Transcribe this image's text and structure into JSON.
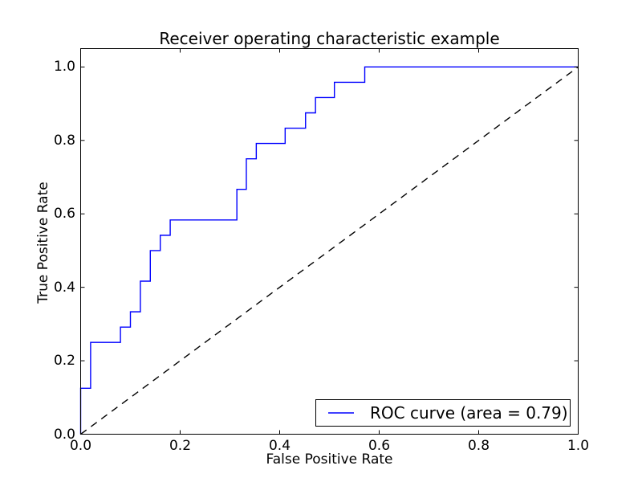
{
  "title": "Receiver operating characteristic example",
  "axes": {
    "xlabel": "False Positive Rate",
    "ylabel": "True Positive Rate"
  },
  "legend": {
    "label": "ROC curve (area = 0.79)",
    "series_color": "#0000ff",
    "position": "lower right"
  },
  "colors": {
    "roc_curve": "#0000ff",
    "chance_line": "#000000",
    "frame": "#000000",
    "background": "#ffffff"
  },
  "chart_data": {
    "type": "line",
    "title": "Receiver operating characteristic example",
    "xlabel": "False Positive Rate",
    "ylabel": "True Positive Rate",
    "xlim": [
      0.0,
      1.0
    ],
    "ylim": [
      0.0,
      1.05
    ],
    "grid": false,
    "legend_position": "lower right",
    "x_ticks": [
      0.0,
      0.2,
      0.4,
      0.6,
      0.8,
      1.0
    ],
    "y_ticks": [
      0.0,
      0.2,
      0.4,
      0.6,
      0.8,
      1.0
    ],
    "x_tick_labels": [
      "0.0",
      "0.2",
      "0.4",
      "0.6",
      "0.8",
      "1.0"
    ],
    "y_tick_labels": [
      "0.0",
      "0.2",
      "0.4",
      "0.6",
      "0.8",
      "1.0"
    ],
    "auc": 0.79,
    "series": [
      {
        "name": "ROC curve (area = 0.79)",
        "color": "#0000ff",
        "linestyle": "solid",
        "points": [
          [
            0.0,
            0.0
          ],
          [
            0.0,
            0.125
          ],
          [
            0.02,
            0.125
          ],
          [
            0.02,
            0.25
          ],
          [
            0.08,
            0.25
          ],
          [
            0.08,
            0.2917
          ],
          [
            0.1,
            0.2917
          ],
          [
            0.1,
            0.3333
          ],
          [
            0.12,
            0.3333
          ],
          [
            0.12,
            0.4167
          ],
          [
            0.14,
            0.4167
          ],
          [
            0.14,
            0.5
          ],
          [
            0.16,
            0.5
          ],
          [
            0.16,
            0.5417
          ],
          [
            0.18,
            0.5417
          ],
          [
            0.18,
            0.5833
          ],
          [
            0.314,
            0.5833
          ],
          [
            0.314,
            0.6667
          ],
          [
            0.333,
            0.6667
          ],
          [
            0.333,
            0.75
          ],
          [
            0.353,
            0.75
          ],
          [
            0.353,
            0.7917
          ],
          [
            0.411,
            0.7917
          ],
          [
            0.411,
            0.8333
          ],
          [
            0.452,
            0.8333
          ],
          [
            0.452,
            0.875
          ],
          [
            0.472,
            0.875
          ],
          [
            0.472,
            0.9167
          ],
          [
            0.51,
            0.9167
          ],
          [
            0.51,
            0.9583
          ],
          [
            0.571,
            0.9583
          ],
          [
            0.571,
            1.0
          ],
          [
            1.0,
            1.0
          ]
        ]
      },
      {
        "name": "chance-diagonal",
        "color": "#000000",
        "linestyle": "dashed",
        "points": [
          [
            0.0,
            0.0
          ],
          [
            1.0,
            1.0
          ]
        ]
      }
    ]
  }
}
